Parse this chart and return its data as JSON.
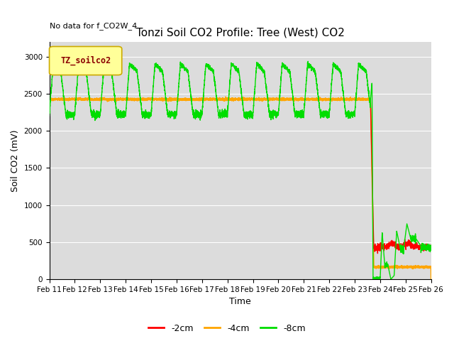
{
  "title": "Tonzi Soil CO2 Profile: Tree (West) CO2",
  "no_data_text": "No data for f_CO2W_4",
  "ylabel": "Soil CO2 (mV)",
  "xlabel": "Time",
  "xlim_days": [
    11,
    26
  ],
  "ylim": [
    0,
    3200
  ],
  "yticks": [
    0,
    500,
    1000,
    1500,
    2000,
    2500,
    3000
  ],
  "legend_entries": [
    "-2cm",
    "-4cm",
    "-8cm"
  ],
  "legend_colors": [
    "#ff0000",
    "#ffa500",
    "#00dd00"
  ],
  "bg_color": "#dcdcdc",
  "fig_color": "#ffffff",
  "legend_box_color": "#ffff99",
  "legend_box_edge": "#ccaa00",
  "legend_label": "TZ_soilco2",
  "grid_color": "#ffffff",
  "title_fontsize": 11,
  "tick_fontsize": 7.5,
  "ylabel_fontsize": 9
}
